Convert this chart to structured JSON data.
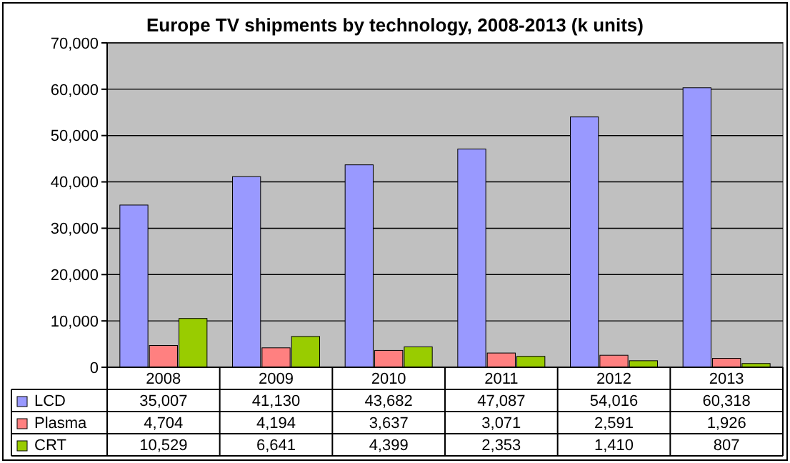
{
  "chart_data": {
    "type": "bar",
    "title": "Europe TV shipments by technology, 2008-2013 (k units)",
    "categories": [
      "2008",
      "2009",
      "2010",
      "2011",
      "2012",
      "2013"
    ],
    "series": [
      {
        "name": "LCD",
        "color": "#9999ff",
        "values": [
          35007,
          41130,
          43682,
          47087,
          54016,
          60318
        ],
        "value_labels": [
          "35,007",
          "41,130",
          "43,682",
          "47,087",
          "54,016",
          "60,318"
        ]
      },
      {
        "name": "Plasma",
        "color": "#ff8080",
        "values": [
          4704,
          4194,
          3637,
          3071,
          2591,
          1926
        ],
        "value_labels": [
          "4,704",
          "4,194",
          "3,637",
          "3,071",
          "2,591",
          "1,926"
        ]
      },
      {
        "name": "CRT",
        "color": "#99cc00",
        "values": [
          10529,
          6641,
          4399,
          2353,
          1410,
          807
        ],
        "value_labels": [
          "10,529",
          "6,641",
          "4,399",
          "2,353",
          "1,410",
          "807"
        ]
      }
    ],
    "ylim": [
      0,
      70000
    ],
    "yticks": [
      {
        "value": 0,
        "label": "0"
      },
      {
        "value": 10000,
        "label": "10,000"
      },
      {
        "value": 20000,
        "label": "20,000"
      },
      {
        "value": 30000,
        "label": "30,000"
      },
      {
        "value": 40000,
        "label": "40,000"
      },
      {
        "value": 50000,
        "label": "50,000"
      },
      {
        "value": 60000,
        "label": "60,000"
      },
      {
        "value": 70000,
        "label": "70,000"
      }
    ],
    "grid": "y",
    "legend": "bottom"
  }
}
